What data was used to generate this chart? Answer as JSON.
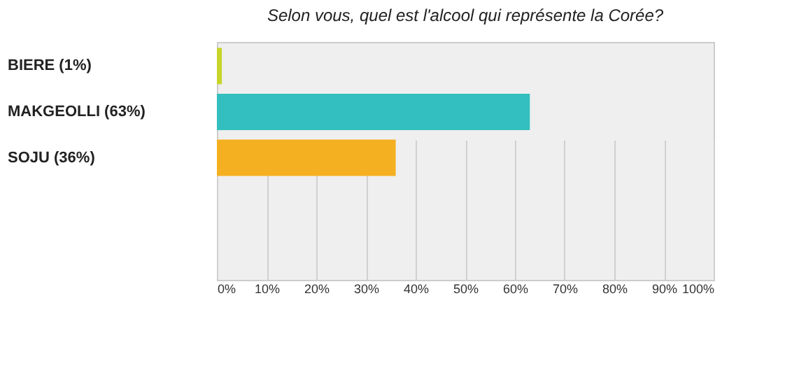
{
  "chart_data": {
    "type": "bar",
    "orientation": "horizontal",
    "title": "Selon vous, quel est l'alcool qui représente la Corée?",
    "categories": [
      "BIERE (1%)",
      "MAKGEOLLI (63%)",
      "SOJU (36%)"
    ],
    "values": [
      1,
      63,
      36
    ],
    "colors": [
      "#c8d42a",
      "#33bfbf",
      "#f5b021"
    ],
    "xlim": [
      0,
      100
    ],
    "xticks": [
      {
        "value": 0,
        "label": "0%"
      },
      {
        "value": 10,
        "label": "10%"
      },
      {
        "value": 20,
        "label": "20%"
      },
      {
        "value": 30,
        "label": "30%"
      },
      {
        "value": 40,
        "label": "40%"
      },
      {
        "value": 50,
        "label": "50%"
      },
      {
        "value": 60,
        "label": "60%"
      },
      {
        "value": 70,
        "label": "70%"
      },
      {
        "value": 80,
        "label": "80%"
      },
      {
        "value": 90,
        "label": "90%"
      },
      {
        "value": 100,
        "label": "100%"
      }
    ],
    "grid": "x"
  }
}
